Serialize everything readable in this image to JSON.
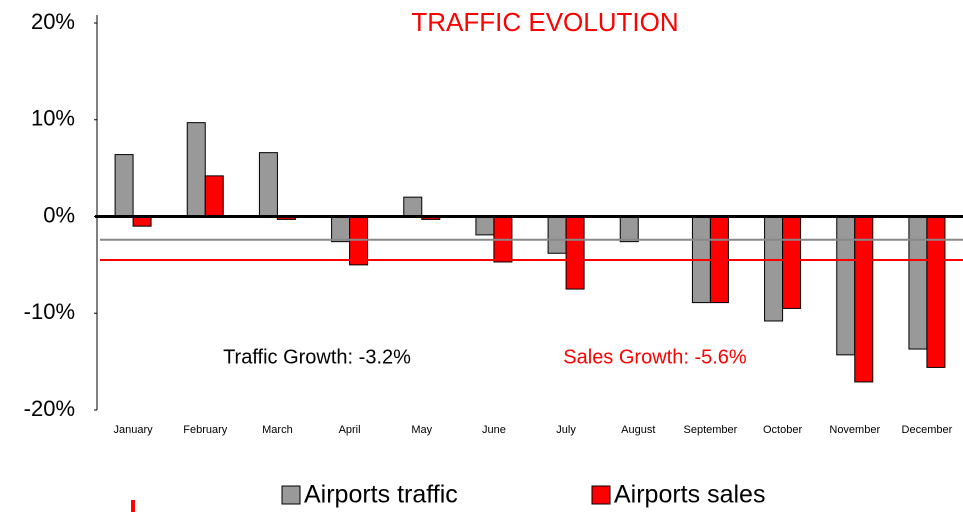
{
  "chart_data": {
    "type": "bar",
    "title": "TRAFFIC EVOLUTION",
    "categories": [
      "January",
      "February",
      "March",
      "April",
      "May",
      "June",
      "July",
      "August",
      "September",
      "October",
      "November",
      "December"
    ],
    "series": [
      {
        "name": "Airports traffic",
        "color": "#999999",
        "values": [
          6.4,
          9.7,
          6.6,
          -2.6,
          2.0,
          -1.9,
          -3.8,
          -2.6,
          -8.9,
          -10.8,
          -14.3,
          -13.7
        ]
      },
      {
        "name": "Airports sales",
        "color": "#ff0000",
        "values": [
          -1.0,
          4.2,
          -0.3,
          -5.0,
          -0.3,
          -4.7,
          -7.5,
          null,
          -8.9,
          -9.5,
          -17.1,
          -15.6
        ]
      }
    ],
    "reference_lines": [
      {
        "value": -2.4,
        "color": "#888888"
      },
      {
        "value": -4.5,
        "color": "#ff0000"
      }
    ],
    "annotations": [
      {
        "text": "Traffic Growth: -3.2%",
        "color": "#000000"
      },
      {
        "text": "Sales Growth: -5.6%",
        "color": "#ff0000"
      }
    ],
    "ylim": [
      -20,
      20
    ],
    "yticks": [
      {
        "value": -20,
        "label": "-20%"
      },
      {
        "value": -10,
        "label": "-10%"
      },
      {
        "value": 0,
        "label": "0%"
      },
      {
        "value": 10,
        "label": "10%"
      },
      {
        "value": 20,
        "label": "20%"
      }
    ],
    "grid": false
  }
}
